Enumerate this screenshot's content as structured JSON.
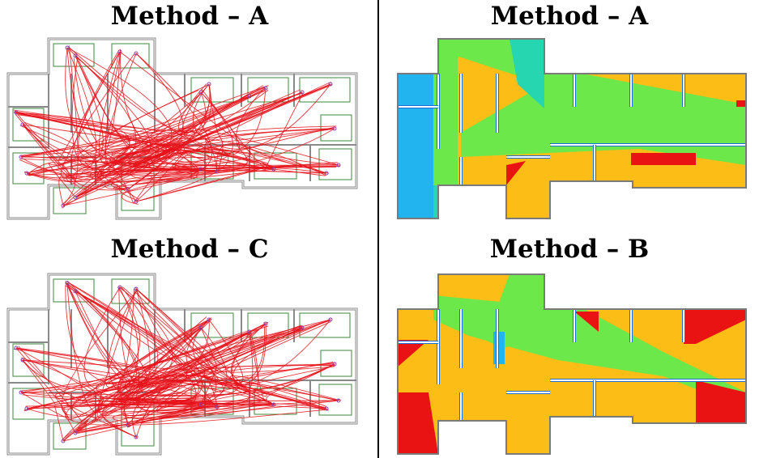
{
  "panels": [
    {
      "id": "top-left",
      "title": "Method – A",
      "kind": "trajectories"
    },
    {
      "id": "top-right",
      "title": "Method – A",
      "kind": "heatmap"
    },
    {
      "id": "bottom-left",
      "title": "Method – C",
      "kind": "trajectories"
    },
    {
      "id": "bottom-right",
      "title": "Method – B",
      "kind": "heatmap"
    }
  ],
  "colors": {
    "trajectory": "#e8121a",
    "wall": "#8a8a8a",
    "zone": "#3c8a3c",
    "marker": "#8b3fa8",
    "heat_blue": "#22b4ee",
    "heat_cyan": "#26d6b0",
    "heat_green": "#6de84a",
    "heat_orange": "#fbbd16",
    "heat_red": "#ea1313",
    "divider": "#000000"
  }
}
